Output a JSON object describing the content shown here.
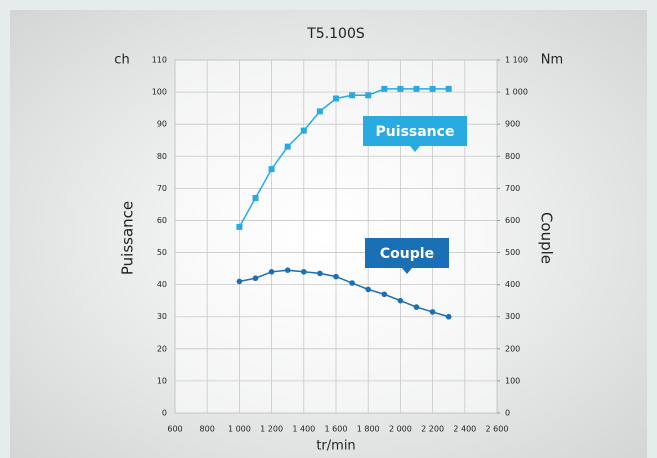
{
  "chart_data": {
    "type": "line",
    "title": "T5.100S",
    "x_label": "tr/min",
    "y_unit": "ch",
    "y2_unit": "Nm",
    "y_label": "Puissance",
    "y2_label": "Couple",
    "x": [
      1000,
      1100,
      1200,
      1300,
      1400,
      1500,
      1600,
      1700,
      1800,
      1900,
      2000,
      2100,
      2200,
      2300
    ],
    "series": [
      {
        "name": "Puissance",
        "color": "#29abe2",
        "axis": "y",
        "values": [
          58,
          67,
          76,
          83,
          88,
          94,
          98,
          99,
          99,
          101,
          101,
          101,
          101,
          101
        ]
      },
      {
        "name": "Couple",
        "color": "#1a6fb5",
        "axis": "y2",
        "values": [
          410,
          420,
          440,
          445,
          440,
          435,
          425,
          405,
          385,
          370,
          350,
          330,
          315,
          300
        ]
      }
    ],
    "xlim": [
      600,
      2600
    ],
    "xticks": [
      600,
      800,
      {
        "value": 1000,
        "label": "1 000"
      },
      {
        "value": 1200,
        "label": "1 200"
      },
      {
        "value": 1400,
        "label": "1 400"
      },
      {
        "value": 1600,
        "label": "1 600"
      },
      {
        "value": 1800,
        "label": "1 800"
      },
      {
        "value": 2000,
        "label": "2 000"
      },
      {
        "value": 2200,
        "label": "2 200"
      },
      {
        "value": 2400,
        "label": "2 400"
      },
      {
        "value": 2600,
        "label": "2 600"
      }
    ],
    "ylim": [
      0,
      110
    ],
    "yticks": [
      0,
      10,
      20,
      30,
      40,
      50,
      60,
      70,
      80,
      90,
      100,
      110
    ],
    "y2lim": [
      0,
      1100
    ],
    "y2ticks": [
      0,
      100,
      200,
      300,
      400,
      500,
      600,
      700,
      800,
      900,
      {
        "value": 1000,
        "label": "1 000"
      },
      {
        "value": 1100,
        "label": "1 100"
      }
    ],
    "grid": true
  }
}
